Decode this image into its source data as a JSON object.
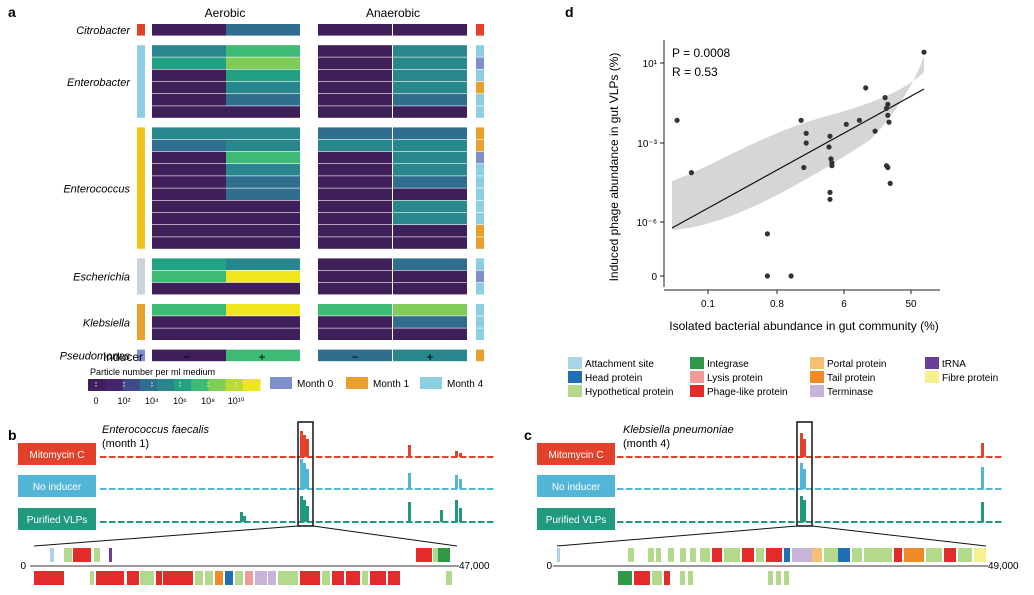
{
  "panel_a": {
    "label": "a",
    "col_aerobic": "Aerobic",
    "col_anaerobic": "Anaerobic",
    "groups": [
      {
        "name": "Citrobacter",
        "month_color": "#e2412b",
        "rows": [
          [
            0,
            3,
            0,
            0,
            "#e2412b"
          ]
        ]
      },
      {
        "name": "Enterobacter",
        "month_color": "#8ccfe2",
        "rows": [
          [
            4,
            6,
            0,
            4,
            "#8ccfe2"
          ],
          [
            5,
            7,
            0,
            4,
            "#7f8fcb"
          ],
          [
            0,
            5,
            0,
            4,
            "#8ccfe2"
          ],
          [
            0,
            4,
            0,
            4,
            "#e8a12a"
          ],
          [
            0,
            3,
            0,
            3,
            "#8ccfe2"
          ],
          [
            0,
            0,
            0,
            0,
            "#8ccfe2"
          ]
        ]
      },
      {
        "name": "Enterococcus",
        "month_color": "#f0c419",
        "rows": [
          [
            4,
            4,
            3,
            3,
            "#e8a12a"
          ],
          [
            3,
            4,
            4,
            4,
            "#e8a12a"
          ],
          [
            0,
            6,
            0,
            4,
            "#7f8fcb"
          ],
          [
            0,
            4,
            0,
            4,
            "#8ccfe2"
          ],
          [
            0,
            3,
            0,
            3,
            "#8ccfe2"
          ],
          [
            0,
            3,
            0,
            0,
            "#8ccfe2"
          ],
          [
            0,
            0,
            0,
            4,
            "#8ccfe2"
          ],
          [
            0,
            0,
            0,
            4,
            "#8ccfe2"
          ],
          [
            0,
            0,
            0,
            0,
            "#e8a12a"
          ],
          [
            0,
            0,
            0,
            0,
            "#e8a12a"
          ]
        ]
      },
      {
        "name": "Escherichia",
        "month_color": "#ccd3d8",
        "rows": [
          [
            5,
            4,
            0,
            3,
            "#8ccfe2"
          ],
          [
            6,
            9,
            0,
            0,
            "#7f8fcb"
          ],
          [
            0,
            0,
            0,
            0,
            "#8ccfe2"
          ]
        ]
      },
      {
        "name": "Klebsiella",
        "month_color": "#e8a12a",
        "rows": [
          [
            6,
            9,
            6,
            7,
            "#8ccfe2"
          ],
          [
            0,
            0,
            0,
            3,
            "#8ccfe2"
          ],
          [
            0,
            0,
            0,
            0,
            "#8ccfe2"
          ]
        ]
      },
      {
        "name": "Pseudomonas",
        "month_color": "#7f8fcb",
        "rows": [
          [
            0,
            6,
            3,
            4,
            "#e8a12a"
          ]
        ]
      }
    ],
    "inducer_label": "Inducer",
    "inducer_signs": [
      "−",
      "+",
      "−",
      "+"
    ],
    "colorbar_title": "Particle number per ml medium",
    "colorbar_ticks": [
      "0",
      "10²",
      "10⁴",
      "10⁶",
      "10⁸",
      "10¹⁰"
    ],
    "month_legend": [
      {
        "label": "Month 0",
        "color": "#7f8fcb"
      },
      {
        "label": "Month 1",
        "color": "#e8a12a"
      },
      {
        "label": "Month 4",
        "color": "#8ccfe2"
      }
    ],
    "heat_colors": [
      "#3e1f5a",
      "#44256c",
      "#3f4a8a",
      "#2f6e8e",
      "#27878d",
      "#23a183",
      "#3dbb75",
      "#7fcd56",
      "#b9db3a",
      "#f0e51e"
    ]
  },
  "panel_b": {
    "label": "b",
    "title_line1": "Enterococcus faecalis",
    "title_line2": "(month 1)",
    "tracks": [
      "Mitomycin C",
      "No inducer",
      "Purified VLPs"
    ],
    "start": "0",
    "end": "47,000"
  },
  "panel_c": {
    "label": "c",
    "title_line1": "Klebsiella pneumoniae",
    "title_line2": "(month 4)",
    "tracks": [
      "Mitomycin C",
      "No inducer",
      "Purified VLPs"
    ],
    "start": "0",
    "end": "49,000"
  },
  "gene_legend": [
    {
      "label": "Attachment site",
      "color": "#a9d4e6"
    },
    {
      "label": "Head protein",
      "color": "#1f6fb4"
    },
    {
      "label": "Hypothetical protein",
      "color": "#b3d98c"
    },
    {
      "label": "Integrase",
      "color": "#2e9a48"
    },
    {
      "label": "Lysis protein",
      "color": "#f29999"
    },
    {
      "label": "Phage-like protein",
      "color": "#e32b2b"
    },
    {
      "label": "Portal protein",
      "color": "#f6bf72"
    },
    {
      "label": "Tail protein",
      "color": "#f08a26"
    },
    {
      "label": "Terminase",
      "color": "#c8b3db"
    },
    {
      "label": "tRNA",
      "color": "#6a3d9a"
    },
    {
      "label": "Fibre protein",
      "color": "#f7f08e"
    }
  ],
  "track_colors": {
    "mitomycin": "#e2412b",
    "noinducer": "#54b6d6",
    "vlp": "#1f9a7f"
  },
  "chart_data": {
    "type": "scatter",
    "panel_label": "d",
    "xlabel": "Isolated bacterial abundance in gut community (%)",
    "ylabel": "Induced phage abundance in gut VLPs (%)",
    "x_scale": "log",
    "y_scale": "log",
    "xticks": [
      "0.1",
      "0.8",
      "6",
      "50"
    ],
    "yticks": [
      "10¹",
      "10⁻³",
      "10⁻⁶",
      "0"
    ],
    "annotations": [
      "P = 0.0008",
      "R = 0.53"
    ],
    "points": [
      [
        0.012,
        0.03
      ],
      [
        0.02,
        0.00015
      ],
      [
        0.3,
        3e-07
      ],
      [
        0.3,
        0
      ],
      [
        0.7,
        0
      ],
      [
        1.0,
        0.03
      ],
      [
        1.1,
        0.00025
      ],
      [
        1.2,
        0.003
      ],
      [
        1.2,
        0.008
      ],
      [
        2.8,
        0.006
      ],
      [
        2.7,
        0.002
      ],
      [
        2.9,
        0.0006
      ],
      [
        3.0,
        0.0003
      ],
      [
        3.0,
        0.0004
      ],
      [
        2.8,
        2e-05
      ],
      [
        2.8,
        1e-05
      ],
      [
        5,
        0.02
      ],
      [
        8,
        0.03
      ],
      [
        10,
        0.8
      ],
      [
        14,
        0.01
      ],
      [
        20,
        0.3
      ],
      [
        22,
        0.15
      ],
      [
        21,
        0.1
      ],
      [
        22,
        0.05
      ],
      [
        23,
        0.025
      ],
      [
        21,
        0.0003
      ],
      [
        22,
        0.00025
      ],
      [
        24,
        5e-05
      ],
      [
        80,
        30
      ]
    ],
    "trend_line": {
      "from": [
        0.008,
        3e-07
      ],
      "to": [
        80,
        0.2
      ]
    }
  }
}
